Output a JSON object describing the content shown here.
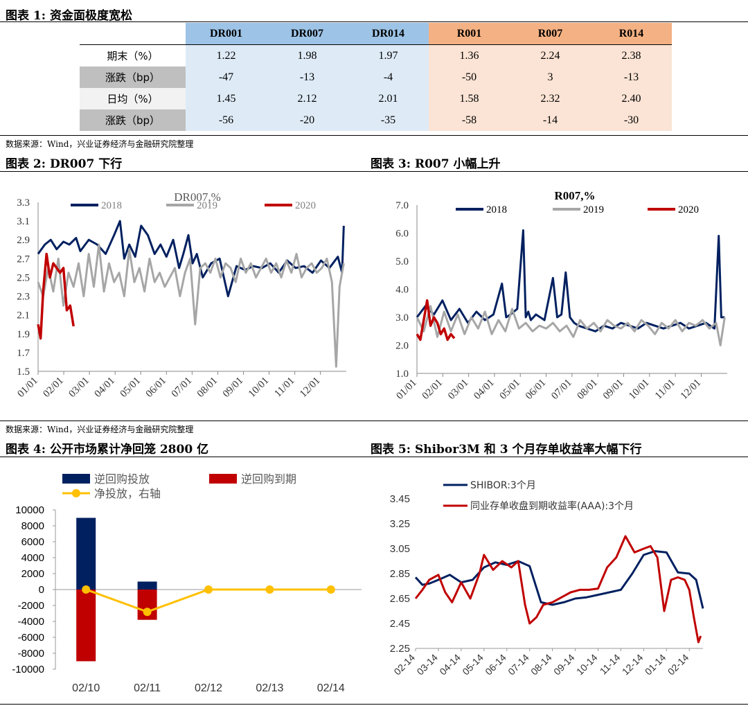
{
  "fig1": {
    "title": "图表 1:  资金面极度宽松",
    "columns": [
      "DR001",
      "DR007",
      "DR014",
      "R001",
      "R007",
      "R014"
    ],
    "rows": [
      {
        "label": "期末（%）",
        "values": [
          "1.22",
          "1.98",
          "1.97",
          "1.36",
          "2.24",
          "2.38"
        ]
      },
      {
        "label": "涨跌（bp）",
        "values": [
          "-47",
          "-13",
          "-4",
          "-50",
          "3",
          "-13"
        ]
      },
      {
        "label": "日均（%）",
        "values": [
          "1.45",
          "2.12",
          "2.01",
          "1.58",
          "2.32",
          "2.40"
        ]
      },
      {
        "label": "涨跌（bp）",
        "values": [
          "-56",
          "-20",
          "-35",
          "-58",
          "-14",
          "-30"
        ]
      }
    ],
    "source": "数据来源：Wind，兴业证券经济与金融研究院整理"
  },
  "fig2": {
    "title": "图表 2:  DR007 下行",
    "chart_data": {
      "type": "line",
      "title": "DR007,%",
      "ylim": [
        1.5,
        3.3
      ],
      "yticks": [
        "3.3",
        "3.1",
        "2.9",
        "2.7",
        "2.5",
        "2.3",
        "2.1",
        "1.9",
        "1.7",
        "1.5"
      ],
      "xticks": [
        "01/01",
        "02/01",
        "03/01",
        "04/01",
        "05/01",
        "06/01",
        "07/01",
        "08/01",
        "09/01",
        "10/01",
        "11/01",
        "12/01"
      ],
      "series": [
        {
          "name": "2018",
          "color": "#002060",
          "x": [
            0,
            8,
            15,
            22,
            30,
            37,
            45,
            50,
            60,
            70,
            80,
            90,
            97,
            102,
            108,
            115,
            122,
            130,
            138,
            145,
            152,
            160,
            167,
            172,
            178,
            183,
            188,
            195,
            205,
            215,
            225,
            235,
            245,
            255,
            265,
            275,
            285,
            295,
            305,
            315,
            325,
            335,
            345,
            355,
            360,
            362
          ],
          "values": [
            2.75,
            2.85,
            2.9,
            2.8,
            2.88,
            2.85,
            2.92,
            2.78,
            2.9,
            2.85,
            2.75,
            2.95,
            3.1,
            2.7,
            2.85,
            2.72,
            3.05,
            2.95,
            2.75,
            2.85,
            2.72,
            2.9,
            2.6,
            2.75,
            2.95,
            2.65,
            2.75,
            2.5,
            2.65,
            2.7,
            2.3,
            2.62,
            2.58,
            2.62,
            2.6,
            2.65,
            2.55,
            2.68,
            2.6,
            2.62,
            2.55,
            2.68,
            2.6,
            2.72,
            2.55,
            3.05
          ]
        },
        {
          "name": "2019",
          "color": "#a6a6a6",
          "x": [
            0,
            6,
            12,
            18,
            24,
            30,
            36,
            42,
            48,
            54,
            60,
            66,
            72,
            78,
            84,
            90,
            96,
            102,
            108,
            114,
            120,
            126,
            132,
            138,
            144,
            150,
            156,
            162,
            168,
            174,
            180,
            186,
            192,
            198,
            204,
            210,
            216,
            222,
            228,
            234,
            240,
            246,
            252,
            258,
            264,
            270,
            276,
            282,
            288,
            294,
            300,
            306,
            312,
            318,
            324,
            330,
            336,
            342,
            348,
            353,
            357,
            362
          ],
          "values": [
            2.45,
            2.3,
            2.6,
            2.35,
            2.7,
            2.2,
            2.55,
            2.4,
            2.65,
            2.3,
            2.75,
            2.4,
            2.85,
            2.35,
            2.65,
            2.45,
            2.55,
            2.3,
            2.8,
            2.45,
            2.6,
            2.35,
            2.7,
            2.45,
            2.55,
            2.4,
            2.5,
            2.6,
            2.3,
            2.55,
            2.7,
            2.0,
            2.6,
            2.65,
            2.55,
            2.7,
            2.5,
            2.65,
            2.6,
            2.45,
            2.7,
            2.55,
            2.65,
            2.5,
            2.6,
            2.7,
            2.55,
            2.65,
            2.5,
            2.68,
            2.55,
            2.75,
            2.5,
            2.6,
            2.65,
            2.55,
            2.6,
            2.7,
            2.45,
            1.55,
            2.4,
            2.65
          ]
        },
        {
          "name": "2020",
          "color": "#c00000",
          "x": [
            0,
            3,
            6,
            10,
            14,
            18,
            22,
            26,
            30,
            34,
            38,
            42
          ],
          "values": [
            2.0,
            1.85,
            2.35,
            2.75,
            2.5,
            2.65,
            2.6,
            2.55,
            2.6,
            2.15,
            2.2,
            1.98
          ]
        }
      ]
    }
  },
  "fig3": {
    "title": "图表 3:  R007 小幅上升",
    "chart_data": {
      "type": "line",
      "title": "R007,%",
      "ylim": [
        1.0,
        7.0
      ],
      "yticks": [
        "7.0",
        "6.0",
        "5.0",
        "4.0",
        "3.0",
        "2.0",
        "1.0"
      ],
      "xticks": [
        "01/01",
        "02/01",
        "03/01",
        "04/01",
        "05/01",
        "06/01",
        "07/01",
        "08/01",
        "09/01",
        "10/01",
        "11/01",
        "12/01"
      ],
      "series": [
        {
          "name": "2018",
          "color": "#002060",
          "x": [
            0,
            10,
            20,
            30,
            40,
            50,
            60,
            70,
            80,
            90,
            100,
            105,
            110,
            118,
            125,
            128,
            131,
            134,
            140,
            150,
            160,
            165,
            170,
            175,
            180,
            185,
            190,
            200,
            210,
            220,
            230,
            240,
            250,
            260,
            270,
            280,
            290,
            300,
            310,
            320,
            330,
            340,
            350,
            355,
            358,
            362
          ],
          "values": [
            3.0,
            3.4,
            3.1,
            3.6,
            2.9,
            3.3,
            2.8,
            3.2,
            2.9,
            3.1,
            4.2,
            3.0,
            3.1,
            3.3,
            6.1,
            3.0,
            3.2,
            2.9,
            3.1,
            2.9,
            4.4,
            3.0,
            3.1,
            4.6,
            3.0,
            2.8,
            2.7,
            2.6,
            2.5,
            2.7,
            2.6,
            2.8,
            2.7,
            2.6,
            2.8,
            2.7,
            2.6,
            2.7,
            2.8,
            2.6,
            2.7,
            2.8,
            2.6,
            5.9,
            3.0,
            3.0
          ]
        },
        {
          "name": "2019",
          "color": "#a6a6a6",
          "x": [
            0,
            8,
            16,
            24,
            32,
            40,
            48,
            56,
            64,
            72,
            80,
            88,
            96,
            104,
            112,
            120,
            128,
            136,
            144,
            152,
            160,
            168,
            176,
            184,
            192,
            200,
            208,
            216,
            224,
            232,
            240,
            248,
            256,
            264,
            272,
            280,
            288,
            296,
            304,
            312,
            320,
            328,
            336,
            344,
            352,
            357,
            362
          ],
          "values": [
            3.0,
            2.5,
            3.4,
            2.3,
            3.2,
            2.5,
            3.1,
            2.4,
            3.0,
            2.6,
            3.2,
            2.4,
            2.9,
            2.5,
            3.3,
            2.6,
            2.8,
            2.5,
            2.7,
            2.6,
            2.8,
            2.5,
            2.7,
            2.3,
            2.9,
            2.6,
            2.8,
            2.5,
            2.9,
            2.7,
            2.6,
            2.8,
            2.5,
            2.9,
            2.7,
            2.4,
            2.8,
            2.6,
            2.9,
            2.5,
            2.8,
            2.7,
            2.9,
            2.6,
            2.8,
            2.0,
            3.0
          ]
        },
        {
          "name": "2020",
          "color": "#c00000",
          "x": [
            0,
            4,
            8,
            12,
            16,
            20,
            24,
            28,
            32,
            36,
            40,
            44
          ],
          "values": [
            2.4,
            2.2,
            2.9,
            3.6,
            2.7,
            3.0,
            2.8,
            2.4,
            2.6,
            2.2,
            2.4,
            2.25
          ]
        }
      ]
    }
  },
  "fig4": {
    "title": "图表 4:  公开市场累计净回笼 2800 亿",
    "source": "数据来源：Wind，兴业证券经济与金融研究院整理",
    "chart_data": {
      "type": "bar",
      "categories": [
        "02/10",
        "02/11",
        "02/12",
        "02/13",
        "02/14"
      ],
      "ylim": [
        -10000,
        10000
      ],
      "yticks": [
        "10000",
        "8000",
        "6000",
        "4000",
        "2000",
        "0",
        "-2000",
        "-4000",
        "-6000",
        "-8000",
        "-10000"
      ],
      "series": [
        {
          "name": "逆回购投放",
          "color": "#002060",
          "values": [
            9000,
            1000,
            0,
            0,
            0
          ]
        },
        {
          "name": "逆回购到期",
          "color": "#c00000",
          "values": [
            -9000,
            -3800,
            0,
            0,
            0
          ]
        },
        {
          "name": "净投放，右轴",
          "color": "#ffc000",
          "type": "line",
          "values": [
            0,
            -2800,
            0,
            0,
            0
          ]
        }
      ]
    }
  },
  "fig5": {
    "title": "图表 5:  Shibor3M 和 3 个月存单收益率大幅下行",
    "chart_data": {
      "type": "line",
      "ylim": [
        2.25,
        3.45
      ],
      "yticks": [
        "3.45",
        "3.25",
        "3.05",
        "2.85",
        "2.65",
        "2.45",
        "2.25"
      ],
      "xticks": [
        "02-14",
        "03-14",
        "04-14",
        "05-14",
        "06-14",
        "07-14",
        "08-14",
        "09-14",
        "10-14",
        "11-14",
        "12-14",
        "01-14",
        "02-14"
      ],
      "series": [
        {
          "name": "SHIBOR:3个月",
          "color": "#002060",
          "x": [
            0,
            0.3,
            0.6,
            1,
            1.5,
            2,
            2.5,
            3,
            3.5,
            4,
            4.5,
            5,
            5.5,
            6,
            6.5,
            7,
            7.5,
            8,
            8.5,
            9,
            9.5,
            10,
            10.5,
            11,
            11.5,
            12,
            12.3,
            12.6
          ],
          "values": [
            2.82,
            2.76,
            2.77,
            2.8,
            2.84,
            2.78,
            2.8,
            2.9,
            2.94,
            2.92,
            2.95,
            2.91,
            2.62,
            2.6,
            2.62,
            2.65,
            2.66,
            2.68,
            2.7,
            2.72,
            2.85,
            3.0,
            3.03,
            3.02,
            2.86,
            2.85,
            2.8,
            2.57
          ]
        },
        {
          "name": "同业存单收盘到期收益率(AAA):3个月",
          "color": "#c00000",
          "x": [
            0,
            0.3,
            0.6,
            1,
            1.3,
            1.6,
            2,
            2.4,
            2.8,
            3,
            3.4,
            3.8,
            4.2,
            4.5,
            4.8,
            5,
            5.3,
            5.6,
            6,
            6.4,
            6.8,
            7.2,
            7.6,
            8,
            8.4,
            8.8,
            9.2,
            9.6,
            10,
            10.3,
            10.6,
            10.9,
            11.2,
            11.5,
            11.8,
            12,
            12.2,
            12.4,
            12.5
          ],
          "values": [
            2.65,
            2.72,
            2.8,
            2.84,
            2.7,
            2.62,
            2.78,
            2.65,
            2.85,
            3.0,
            2.88,
            2.95,
            2.9,
            2.95,
            2.6,
            2.45,
            2.5,
            2.6,
            2.62,
            2.66,
            2.7,
            2.72,
            2.72,
            2.73,
            2.9,
            2.98,
            3.15,
            3.02,
            3.05,
            3.07,
            2.98,
            2.55,
            2.8,
            2.82,
            2.8,
            2.72,
            2.5,
            2.3,
            2.35
          ]
        }
      ]
    }
  }
}
